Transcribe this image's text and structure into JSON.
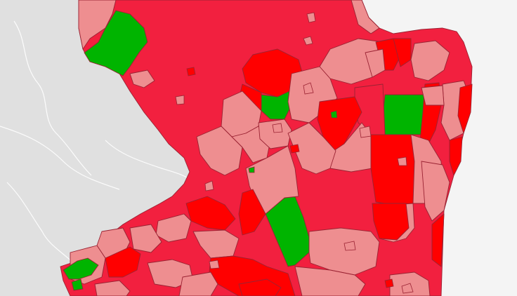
{
  "map": {
    "type": "choropleth",
    "legend": [],
    "colors": {
      "dark_red": "#ff0000",
      "red": "#f2203f",
      "light_red": "#ee8e90",
      "green": "#00b400",
      "land_background": "#e0e0e0",
      "water": "#f4f4f4",
      "border": "#9a2333"
    }
  }
}
